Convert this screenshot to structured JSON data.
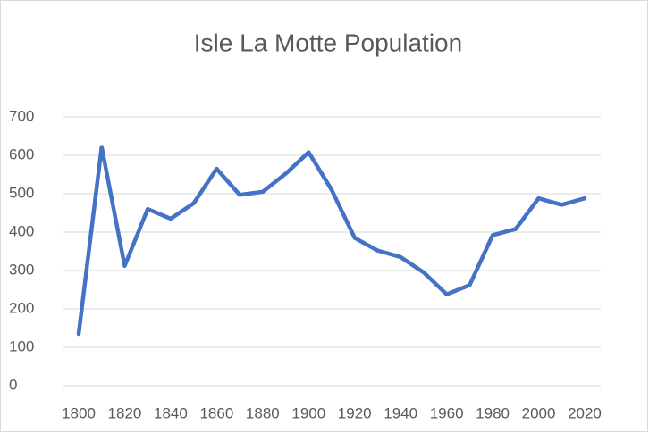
{
  "chart_data": {
    "type": "line",
    "title": "Isle La Motte Population",
    "x": [
      1800,
      1810,
      1820,
      1830,
      1840,
      1850,
      1860,
      1870,
      1880,
      1890,
      1900,
      1910,
      1920,
      1930,
      1940,
      1950,
      1960,
      1970,
      1980,
      1990,
      2000,
      2010,
      2020
    ],
    "series": [
      {
        "name": "Population",
        "color": "#4472c4",
        "values": [
          135,
          622,
          312,
          460,
          435,
          475,
          565,
          497,
          505,
          552,
          608,
          510,
          385,
          352,
          335,
          295,
          238,
          262,
          392,
          408,
          488,
          471,
          488
        ]
      }
    ],
    "xlim": [
      1793,
      2027
    ],
    "xticks": [
      1800,
      1820,
      1840,
      1860,
      1880,
      1900,
      1920,
      1940,
      1960,
      1980,
      2000,
      2020
    ],
    "ylim": [
      0,
      700
    ],
    "yticks": [
      0,
      100,
      200,
      300,
      400,
      500,
      600,
      700
    ],
    "grid": true
  }
}
